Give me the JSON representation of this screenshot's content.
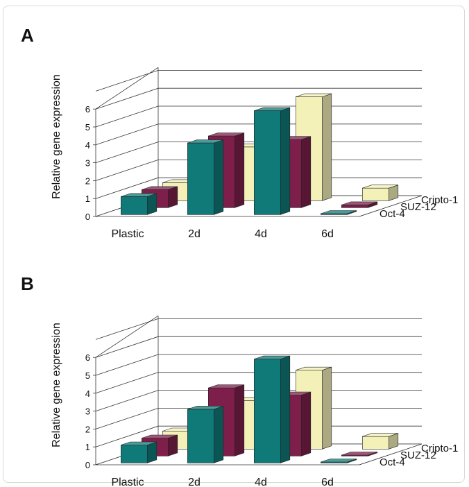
{
  "chart_data": [
    {
      "panel_label": "A",
      "type": "bar",
      "ylabel": "Relative gene expression",
      "yticks": [
        "0",
        "1",
        "2",
        "3",
        "4",
        "5",
        "6"
      ],
      "ylim": [
        0,
        6
      ],
      "categories": [
        "Plastic",
        "2d",
        "4d",
        "6d"
      ],
      "series": [
        {
          "name": "Oct-4",
          "color": "#0f7a78",
          "values": [
            1.0,
            4.0,
            5.8,
            0.05
          ]
        },
        {
          "name": "SUZ-12",
          "color": "#7e1f4b",
          "values": [
            1.0,
            4.0,
            3.8,
            0.15
          ]
        },
        {
          "name": "Cripto-1",
          "color": "#f3f1b8",
          "values": [
            1.0,
            3.0,
            5.8,
            0.7
          ]
        }
      ],
      "grid": true,
      "legend": "right"
    },
    {
      "panel_label": "B",
      "type": "bar",
      "ylabel": "Relative gene expression",
      "yticks": [
        "0",
        "1",
        "2",
        "3",
        "4",
        "5",
        "6"
      ],
      "ylim": [
        0,
        6
      ],
      "categories": [
        "Plastic",
        "2d",
        "4d",
        "6d"
      ],
      "series": [
        {
          "name": "Oct-4",
          "color": "#0f7a78",
          "values": [
            1.0,
            3.0,
            5.8,
            0.05
          ]
        },
        {
          "name": "SUZ-12",
          "color": "#7e1f4b",
          "values": [
            1.0,
            3.8,
            3.4,
            0.05
          ]
        },
        {
          "name": "Cripto-1",
          "color": "#f3f1b8",
          "values": [
            1.0,
            2.7,
            4.4,
            0.7
          ]
        }
      ],
      "grid": true,
      "legend": "right"
    }
  ]
}
